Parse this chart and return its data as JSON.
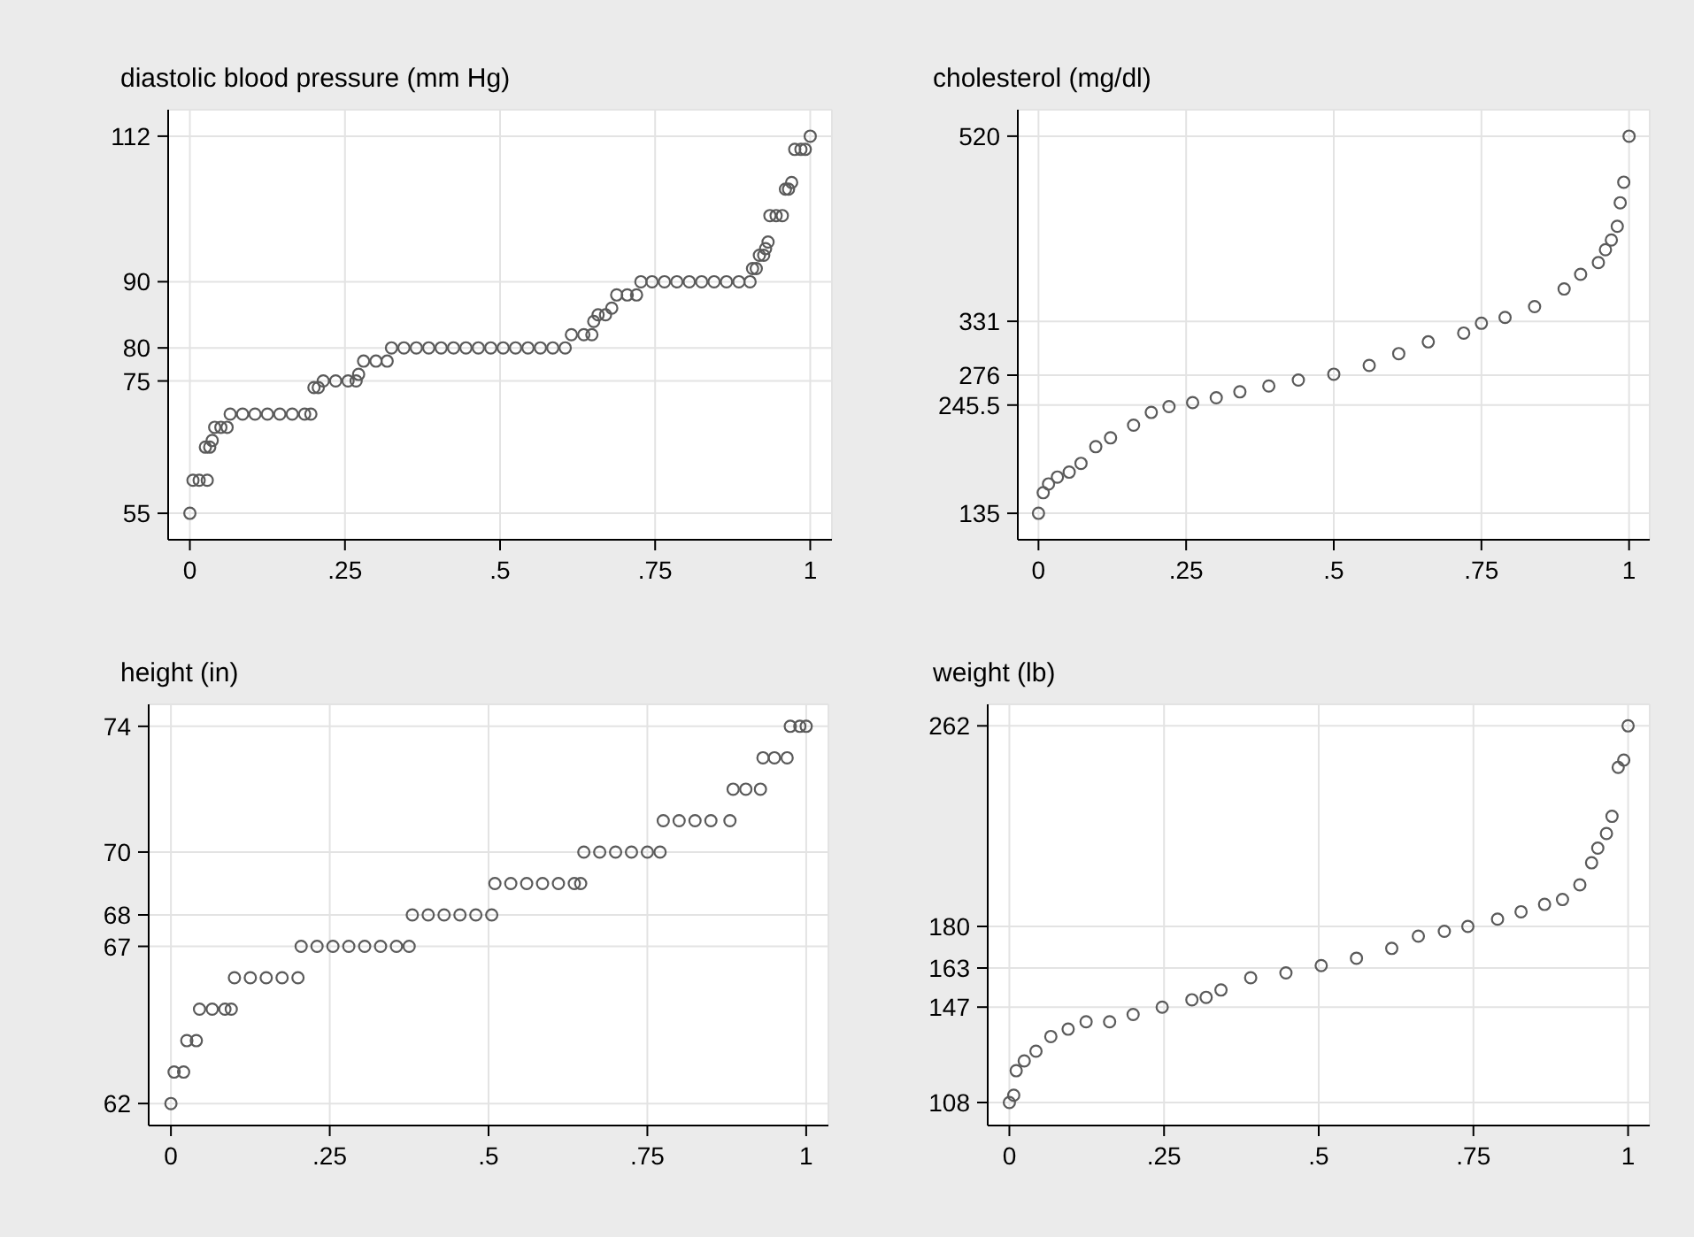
{
  "chart_data": [
    {
      "type": "scatter",
      "title": "diastolic blood pressure (mm Hg)",
      "marker": "circle",
      "grid": true,
      "color": "#5a5a5a",
      "x": [
        0,
        0.005,
        0.015,
        0.028,
        0.025,
        0.032,
        0.036,
        0.04,
        0.05,
        0.06,
        0.065,
        0.085,
        0.105,
        0.125,
        0.145,
        0.165,
        0.185,
        0.195,
        0.2,
        0.207,
        0.215,
        0.235,
        0.255,
        0.268,
        0.272,
        0.28,
        0.3,
        0.318,
        0.325,
        0.345,
        0.365,
        0.385,
        0.405,
        0.425,
        0.445,
        0.465,
        0.485,
        0.505,
        0.525,
        0.545,
        0.565,
        0.585,
        0.605,
        0.615,
        0.635,
        0.648,
        0.651,
        0.658,
        0.67,
        0.68,
        0.688,
        0.705,
        0.72,
        0.727,
        0.745,
        0.765,
        0.785,
        0.805,
        0.825,
        0.845,
        0.865,
        0.885,
        0.903,
        0.907,
        0.913,
        0.918,
        0.925,
        0.928,
        0.932,
        0.935,
        0.945,
        0.955,
        0.96,
        0.965,
        0.97,
        0.975,
        0.985,
        0.992,
        1
      ],
      "values": [
        55,
        60,
        60,
        60,
        65,
        65,
        66,
        68,
        68,
        68,
        70,
        70,
        70,
        70,
        70,
        70,
        70,
        70,
        74,
        74,
        75,
        75,
        75,
        75,
        76,
        78,
        78,
        78,
        80,
        80,
        80,
        80,
        80,
        80,
        80,
        80,
        80,
        80,
        80,
        80,
        80,
        80,
        80,
        82,
        82,
        82,
        84,
        85,
        85,
        86,
        88,
        88,
        88,
        90,
        90,
        90,
        90,
        90,
        90,
        90,
        90,
        90,
        90,
        92,
        92,
        94,
        94,
        95,
        96,
        100,
        100,
        100,
        104,
        104,
        105,
        110,
        110,
        110,
        112
      ],
      "xlim": [
        -0.035,
        1.035
      ],
      "xticks": [
        {
          "value": 0,
          "label": "0"
        },
        {
          "value": 0.25,
          "label": ".25"
        },
        {
          "value": 0.5,
          "label": ".5"
        },
        {
          "value": 0.75,
          "label": ".75"
        },
        {
          "value": 1,
          "label": "1"
        }
      ],
      "ylim": [
        51,
        116
      ],
      "yticks": [
        55,
        75,
        80,
        90,
        112
      ]
    },
    {
      "type": "scatter",
      "title": "cholesterol (mg/dl)",
      "marker": "circle",
      "grid": true,
      "color": "#5a5a5a",
      "x": [
        0,
        0.008,
        0.017,
        0.032,
        0.052,
        0.072,
        0.097,
        0.122,
        0.161,
        0.191,
        0.221,
        0.261,
        0.301,
        0.341,
        0.39,
        0.44,
        0.5,
        0.56,
        0.61,
        0.66,
        0.72,
        0.75,
        0.79,
        0.84,
        0.89,
        0.918,
        0.948,
        0.96,
        0.97,
        0.98,
        0.985,
        0.991,
        1
      ],
      "values": [
        135,
        156,
        165,
        172,
        177,
        186,
        203,
        212,
        225,
        238,
        244,
        248,
        253,
        259,
        265,
        271,
        277,
        286,
        298,
        310,
        319,
        329,
        335,
        346,
        364,
        379,
        391,
        404,
        414,
        428,
        452,
        473,
        520
      ],
      "xlim": [
        -0.035,
        1.035
      ],
      "xticks": [
        {
          "value": 0,
          "label": "0"
        },
        {
          "value": 0.25,
          "label": ".25"
        },
        {
          "value": 0.5,
          "label": ".5"
        },
        {
          "value": 0.75,
          "label": ".75"
        },
        {
          "value": 1,
          "label": "1"
        }
      ],
      "ylim": [
        108,
        547
      ],
      "yticks": [
        135,
        245.5,
        276,
        331,
        520
      ]
    },
    {
      "type": "scatter",
      "title": "height (in)",
      "marker": "circle",
      "grid": true,
      "color": "#5a5a5a",
      "x": [
        0,
        0.005,
        0.02,
        0.025,
        0.04,
        0.045,
        0.065,
        0.085,
        0.095,
        0.1,
        0.125,
        0.15,
        0.175,
        0.2,
        0.205,
        0.23,
        0.255,
        0.28,
        0.305,
        0.33,
        0.355,
        0.375,
        0.38,
        0.405,
        0.43,
        0.455,
        0.48,
        0.505,
        0.51,
        0.535,
        0.56,
        0.585,
        0.61,
        0.635,
        0.645,
        0.65,
        0.675,
        0.7,
        0.725,
        0.75,
        0.77,
        0.775,
        0.8,
        0.825,
        0.85,
        0.88,
        0.885,
        0.905,
        0.928,
        0.932,
        0.95,
        0.97,
        0.975,
        0.99,
        1
      ],
      "values": [
        62,
        63,
        63,
        64,
        64,
        65,
        65,
        65,
        65,
        66,
        66,
        66,
        66,
        66,
        67,
        67,
        67,
        67,
        67,
        67,
        67,
        67,
        68,
        68,
        68,
        68,
        68,
        68,
        69,
        69,
        69,
        69,
        69,
        69,
        69,
        70,
        70,
        70,
        70,
        70,
        70,
        71,
        71,
        71,
        71,
        71,
        72,
        72,
        72,
        73,
        73,
        73,
        74,
        74,
        74
      ],
      "xlim": [
        -0.035,
        1.035
      ],
      "xticks": [
        {
          "value": 0,
          "label": "0"
        },
        {
          "value": 0.25,
          "label": ".25"
        },
        {
          "value": 0.5,
          "label": ".5"
        },
        {
          "value": 0.75,
          "label": ".75"
        },
        {
          "value": 1,
          "label": "1"
        }
      ],
      "ylim": [
        61.3,
        74.7
      ],
      "yticks": [
        62,
        67,
        68,
        70,
        74
      ]
    },
    {
      "type": "scatter",
      "title": "weight (lb)",
      "marker": "circle",
      "grid": true,
      "color": "#5a5a5a",
      "x": [
        0,
        0.007,
        0.011,
        0.024,
        0.043,
        0.067,
        0.095,
        0.124,
        0.162,
        0.2,
        0.247,
        0.295,
        0.318,
        0.342,
        0.39,
        0.447,
        0.504,
        0.561,
        0.618,
        0.661,
        0.703,
        0.741,
        0.789,
        0.827,
        0.865,
        0.894,
        0.922,
        0.941,
        0.951,
        0.965,
        0.974,
        0.984,
        0.993,
        1
      ],
      "values": [
        108,
        111,
        121,
        125,
        129,
        135,
        138,
        141,
        141,
        144,
        147,
        150,
        151,
        154,
        159,
        161,
        164,
        167,
        171,
        176,
        178,
        180,
        183,
        186,
        189,
        191,
        197,
        206,
        212,
        218,
        225,
        245,
        248,
        262
      ],
      "xlim": [
        -0.035,
        1.035
      ],
      "xticks": [
        {
          "value": 0,
          "label": "0"
        },
        {
          "value": 0.25,
          "label": ".25"
        },
        {
          "value": 0.5,
          "label": ".5"
        },
        {
          "value": 0.75,
          "label": ".75"
        },
        {
          "value": 1,
          "label": "1"
        }
      ],
      "ylim": [
        98.6,
        270.8
      ],
      "yticks": [
        108,
        147,
        163,
        180,
        262
      ]
    }
  ]
}
